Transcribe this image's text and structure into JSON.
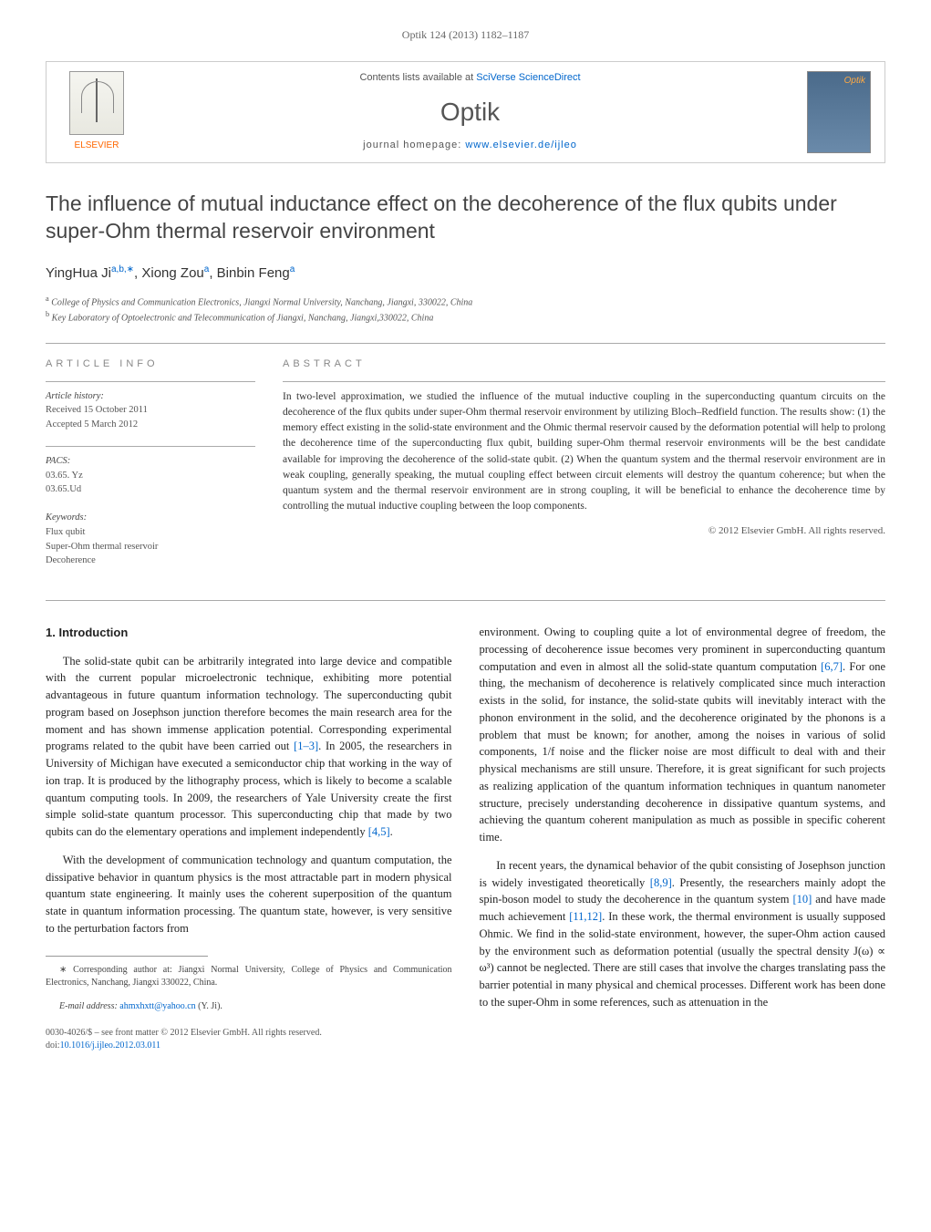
{
  "journal_ref": "Optik 124 (2013) 1182–1187",
  "header": {
    "publisher": "ELSEVIER",
    "contents_text": "Contents lists available at ",
    "contents_link": "SciVerse ScienceDirect",
    "journal_name": "Optik",
    "homepage_label": "journal homepage: ",
    "homepage_link": "www.elsevier.de/ijleo",
    "cover_brand": "Optik"
  },
  "title": "The influence of mutual inductance effect on the decoherence of the flux qubits under super-Ohm thermal reservoir environment",
  "authors_html": "YingHua Ji",
  "author_sup_1": "a,b,∗",
  "author_2": ", Xiong Zou",
  "author_sup_2": "a",
  "author_3": ", Binbin Feng",
  "author_sup_3": "a",
  "affiliations": {
    "a": "College of Physics and Communication Electronics, Jiangxi Normal University, Nanchang, Jiangxi, 330022, China",
    "b": "Key Laboratory of Optoelectronic and Telecommunication of Jiangxi, Nanchang, Jiangxi,330022, China"
  },
  "article_info": {
    "label": "article info",
    "history_heading": "Article history:",
    "received": "Received 15 October 2011",
    "accepted": "Accepted 5 March 2012",
    "pacs_heading": "PACS:",
    "pacs_1": "03.65. Yz",
    "pacs_2": "03.65.Ud",
    "keywords_heading": "Keywords:",
    "kw_1": "Flux qubit",
    "kw_2": "Super-Ohm thermal reservoir",
    "kw_3": "Decoherence"
  },
  "abstract": {
    "label": "abstract",
    "text": "In two-level approximation, we studied the influence of the mutual inductive coupling in the superconducting quantum circuits on the decoherence of the flux qubits under super-Ohm thermal reservoir environment by utilizing Bloch–Redfield function. The results show: (1) the memory effect existing in the solid-state environment and the Ohmic thermal reservoir caused by the deformation potential will help to prolong the decoherence time of the superconducting flux qubit, building super-Ohm thermal reservoir environments will be the best candidate available for improving the decoherence of the solid-state qubit. (2) When the quantum system and the thermal reservoir environment are in weak coupling, generally speaking, the mutual coupling effect between circuit elements will destroy the quantum coherence; but when the quantum system and the thermal reservoir environment are in strong coupling, it will be beneficial to enhance the decoherence time by controlling the mutual inductive coupling between the loop components.",
    "copyright": "© 2012 Elsevier GmbH. All rights reserved."
  },
  "body": {
    "section_heading": "1. Introduction",
    "p1": "The solid-state qubit can be arbitrarily integrated into large device and compatible with the current popular microelectronic technique, exhibiting more potential advantageous in future quantum information technology. The superconducting qubit program based on Josephson junction therefore becomes the main research area for the moment and has shown immense application potential. Corresponding experimental programs related to the qubit have been carried out ",
    "ref_1_3": "[1–3]",
    "p1b": ". In 2005, the researchers in University of Michigan have executed a semiconductor chip that working in the way of ion trap. It is produced by the lithography process, which is likely to become a scalable quantum computing tools. In 2009, the researchers of Yale University create the first simple solid-state quantum processor. This superconducting chip that made by two qubits can do the elementary operations and implement independently ",
    "ref_4_5": "[4,5]",
    "p1c": ".",
    "p2": "With the development of communication technology and quantum computation, the dissipative behavior in quantum physics is the most attractable part in modern physical quantum state engineering. It mainly uses the coherent superposition of the quantum state in quantum information processing. The quantum state, however, is very sensitive to the perturbation factors from",
    "p3a": "environment. Owing to coupling quite a lot of environmental degree of freedom, the processing of decoherence issue becomes very prominent in superconducting quantum computation and even in almost all the solid-state quantum computation ",
    "ref_6_7": "[6,7]",
    "p3b": ". For one thing, the mechanism of decoherence is relatively complicated since much interaction exists in the solid, for instance, the solid-state qubits will inevitably interact with the phonon environment in the solid, and the decoherence originated by the phonons is a problem that must be known; for another, among the noises in various of solid components, 1/f noise and the flicker noise are most difficult to deal with and their physical mechanisms are still unsure. Therefore, it is great significant for such projects as realizing application of the quantum information techniques in quantum nanometer structure, precisely understanding decoherence in dissipative quantum systems, and achieving the quantum coherent manipulation as much as possible in specific coherent time.",
    "p4a": "In recent years, the dynamical behavior of the qubit consisting of Josephson junction is widely investigated theoretically ",
    "ref_8_9": "[8,9]",
    "p4b": ". Presently, the researchers mainly adopt the spin-boson model to study the decoherence in the quantum system ",
    "ref_10": "[10]",
    "p4c": " and have made much achievement ",
    "ref_11_12": "[11,12]",
    "p4d": ". In these work, the thermal environment is usually supposed Ohmic. We find in the solid-state environment, however, the super-Ohm action caused by the environment such as deformation potential (usually the spectral density J(ω) ∝ ω³) cannot be neglected. There are still cases that involve the charges translating pass the barrier potential in many physical and chemical processes. Different work has been done to the super-Ohm in some references, such as attenuation in the"
  },
  "footnote": {
    "corr": "∗ Corresponding author at: Jiangxi Normal University, College of Physics and Communication Electronics, Nanchang, Jiangxi 330022, China.",
    "email_label": "E-mail address: ",
    "email": "ahmxhxtt@yahoo.cn",
    "email_suffix": " (Y. Ji)."
  },
  "bottom": {
    "issn": "0030-4026/$ – see front matter © 2012 Elsevier GmbH. All rights reserved.",
    "doi_label": "doi:",
    "doi": "10.1016/j.ijleo.2012.03.011"
  },
  "colors": {
    "link": "#0066cc",
    "publisher": "#ff6600",
    "text": "#333333",
    "border": "#cccccc"
  }
}
